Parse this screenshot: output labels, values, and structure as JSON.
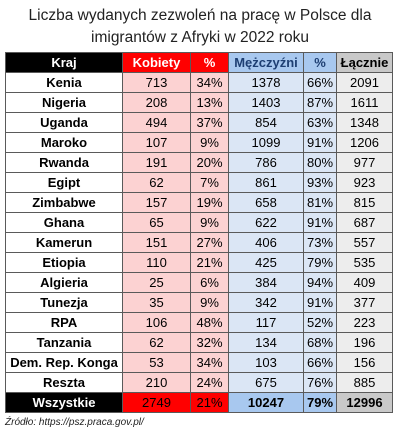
{
  "title_line1": "Liczba wydanych zezwoleń na pracę w Polsce dla",
  "title_line2": "imigrantów z Afryki w 2022 roku",
  "headers": {
    "country": "Kraj",
    "women": "Kobiety",
    "women_pct": "%",
    "men": "Mężczyźni",
    "men_pct": "%",
    "total": "Łącznie"
  },
  "rows": [
    {
      "country": "Kenia",
      "women": "713",
      "women_pct": "34%",
      "men": "1378",
      "men_pct": "66%",
      "total": "2091"
    },
    {
      "country": "Nigeria",
      "women": "208",
      "women_pct": "13%",
      "men": "1403",
      "men_pct": "87%",
      "total": "1611"
    },
    {
      "country": "Uganda",
      "women": "494",
      "women_pct": "37%",
      "men": "854",
      "men_pct": "63%",
      "total": "1348"
    },
    {
      "country": "Maroko",
      "women": "107",
      "women_pct": "9%",
      "men": "1099",
      "men_pct": "91%",
      "total": "1206"
    },
    {
      "country": "Rwanda",
      "women": "191",
      "women_pct": "20%",
      "men": "786",
      "men_pct": "80%",
      "total": "977"
    },
    {
      "country": "Egipt",
      "women": "62",
      "women_pct": "7%",
      "men": "861",
      "men_pct": "93%",
      "total": "923"
    },
    {
      "country": "Zimbabwe",
      "women": "157",
      "women_pct": "19%",
      "men": "658",
      "men_pct": "81%",
      "total": "815"
    },
    {
      "country": "Ghana",
      "women": "65",
      "women_pct": "9%",
      "men": "622",
      "men_pct": "91%",
      "total": "687"
    },
    {
      "country": "Kamerun",
      "women": "151",
      "women_pct": "27%",
      "men": "406",
      "men_pct": "73%",
      "total": "557"
    },
    {
      "country": "Etiopia",
      "women": "110",
      "women_pct": "21%",
      "men": "425",
      "men_pct": "79%",
      "total": "535"
    },
    {
      "country": "Algieria",
      "women": "25",
      "women_pct": "6%",
      "men": "384",
      "men_pct": "94%",
      "total": "409"
    },
    {
      "country": "Tunezja",
      "women": "35",
      "women_pct": "9%",
      "men": "342",
      "men_pct": "91%",
      "total": "377"
    },
    {
      "country": "RPA",
      "women": "106",
      "women_pct": "48%",
      "men": "117",
      "men_pct": "52%",
      "total": "223"
    },
    {
      "country": "Tanzania",
      "women": "62",
      "women_pct": "32%",
      "men": "134",
      "men_pct": "68%",
      "total": "196"
    },
    {
      "country": "Dem. Rep. Konga",
      "women": "53",
      "women_pct": "34%",
      "men": "103",
      "men_pct": "66%",
      "total": "156"
    },
    {
      "country": "Reszta",
      "women": "210",
      "women_pct": "24%",
      "men": "675",
      "men_pct": "76%",
      "total": "885"
    }
  ],
  "totals": {
    "country": "Wszystkie",
    "women": "2749",
    "women_pct": "21%",
    "men": "10247",
    "men_pct": "79%",
    "total": "12996"
  },
  "source": "Źródło: https://psz.praca.gov.pl/",
  "colors": {
    "women_header": "#ff0000",
    "women_cell": "#fcd2d2",
    "men_header": "#a8c8ef",
    "men_cell": "#dbe6f5",
    "total_header": "#c9c9c9",
    "total_cell": "#ededed"
  }
}
